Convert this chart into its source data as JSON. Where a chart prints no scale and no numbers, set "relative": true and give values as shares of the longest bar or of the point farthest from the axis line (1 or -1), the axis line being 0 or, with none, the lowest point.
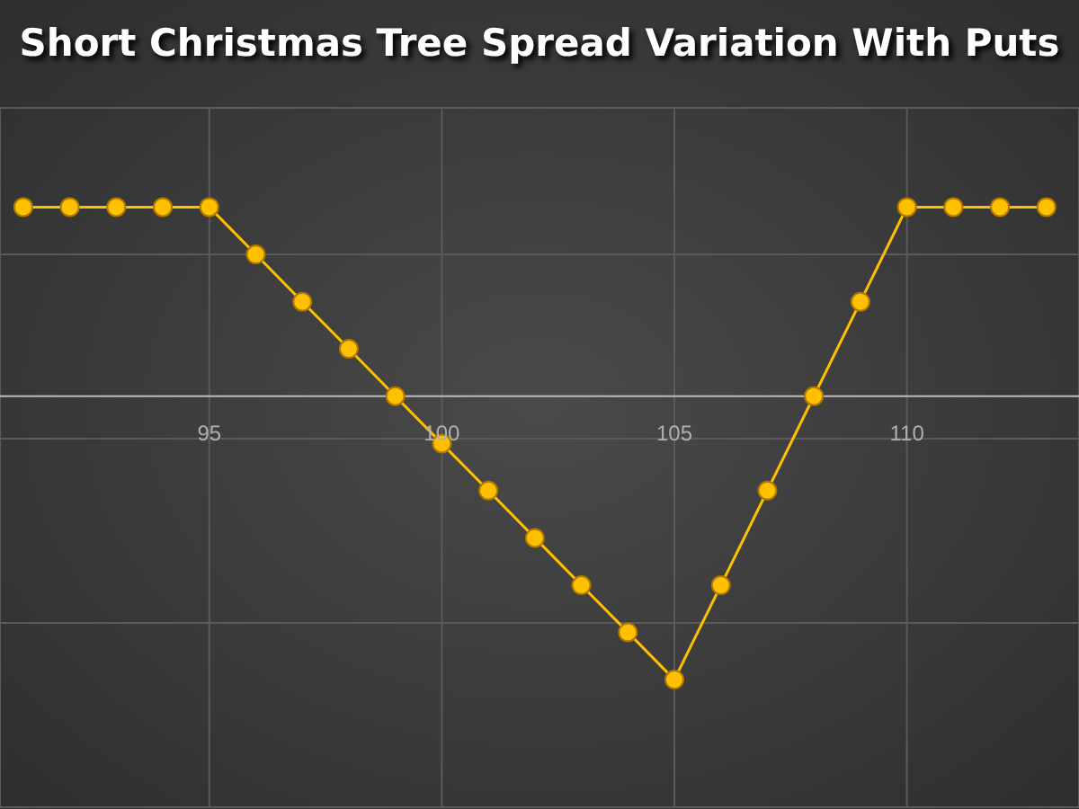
{
  "chart_data": {
    "type": "line",
    "title": "Short Christmas Tree Spread Variation With Puts",
    "relative": true,
    "x": [
      91,
      92,
      93,
      94,
      95,
      96,
      97,
      98,
      99,
      100,
      101,
      102,
      103,
      104,
      105,
      106,
      107,
      108,
      109,
      110,
      111,
      112,
      113
    ],
    "series": [
      {
        "color": "#ffc000",
        "values": [
          0.667,
          0.667,
          0.667,
          0.667,
          0.667,
          0.5,
          0.333,
          0.167,
          0,
          -0.167,
          -0.333,
          -0.5,
          -0.667,
          -0.833,
          -1,
          -0.667,
          -0.333,
          0,
          0.333,
          0.667,
          0.667,
          0.667,
          0.667
        ]
      }
    ],
    "xlim": [
      90.5,
      113.7
    ],
    "xticks": [
      95,
      100,
      105,
      110
    ],
    "grid": true,
    "legend": false,
    "marker": "circle",
    "line_style": "solid"
  }
}
